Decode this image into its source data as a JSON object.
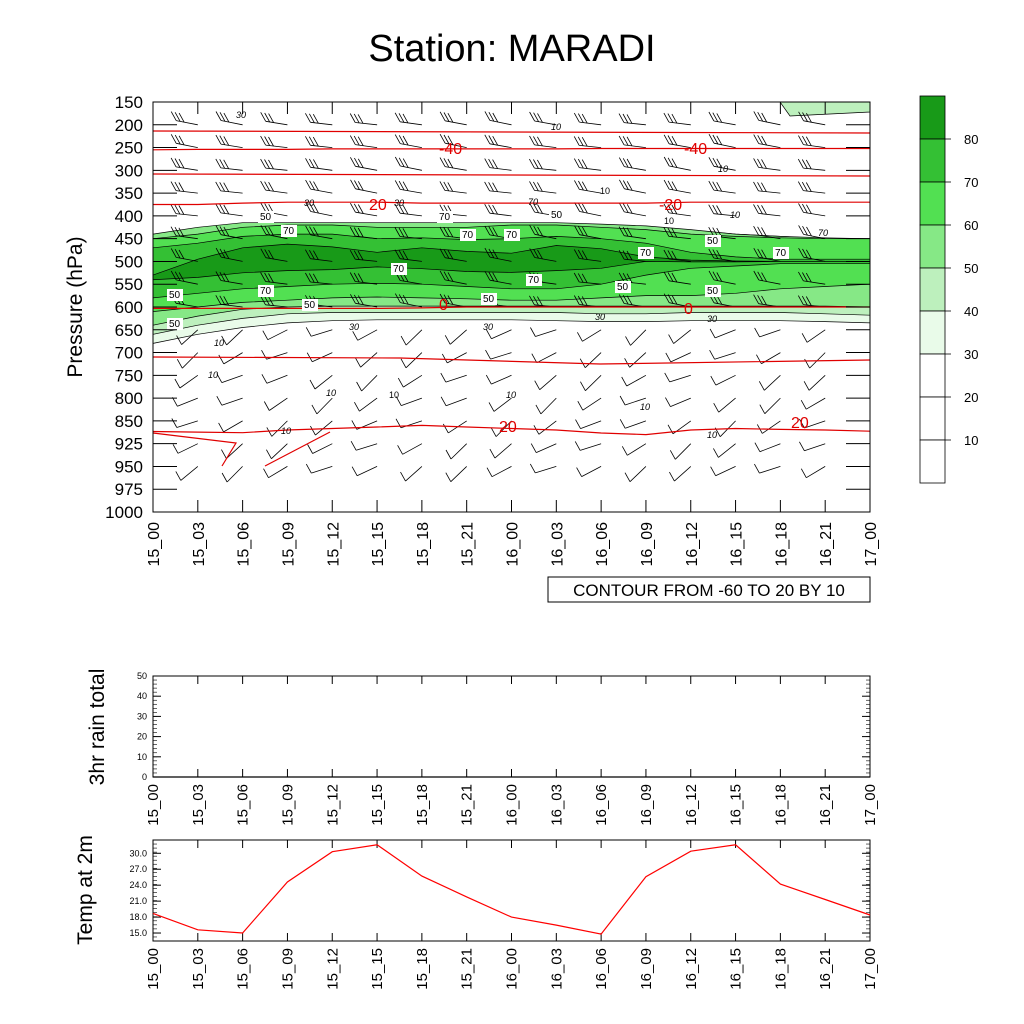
{
  "title": "Station: MARADI",
  "chart_data": [
    {
      "type": "contour",
      "name": "relative-humidity-temperature-cross-section",
      "ylabel": "Pressure (hPa)",
      "y_ticks": [
        "150",
        "200",
        "250",
        "300",
        "350",
        "400",
        "450",
        "500",
        "550",
        "600",
        "650",
        "700",
        "750",
        "800",
        "850",
        "925",
        "950",
        "975",
        "1000"
      ],
      "x_ticks": [
        "15_00",
        "15_03",
        "15_06",
        "15_09",
        "15_12",
        "15_15",
        "15_18",
        "15_21",
        "16_00",
        "16_03",
        "16_06",
        "16_09",
        "16_12",
        "16_15",
        "16_18",
        "16_21",
        "17_00"
      ],
      "info_label": "CONTOUR FROM -60 TO 20 BY 10",
      "colorbar": {
        "levels": [
          "80",
          "70",
          "60",
          "50",
          "40",
          "30",
          "20",
          "10"
        ],
        "colors": [
          "#189a18",
          "#34c034",
          "#52e052",
          "#86e886",
          "#bdf0bd",
          "#e9fbe9",
          "#ffffff",
          "#ffffff",
          "#ffffff"
        ]
      },
      "fill_series": [
        {
          "level": 30,
          "color": "#e9fbe9",
          "top": [
            460,
            440,
            430,
            430,
            430,
            430,
            430,
            430,
            430,
            430,
            430,
            435,
            440,
            445,
            450,
            455,
            460
          ],
          "bottom": [
            680,
            660,
            645,
            635,
            630,
            628,
            628,
            628,
            628,
            630,
            632,
            632,
            630,
            630,
            630,
            632,
            635
          ]
        },
        {
          "level": 40,
          "color": "#bdf0bd",
          "top": [
            450,
            430,
            420,
            420,
            420,
            420,
            420,
            420,
            420,
            420,
            420,
            425,
            432,
            440,
            445,
            450,
            452
          ],
          "bottom": [
            660,
            640,
            625,
            615,
            612,
            612,
            612,
            612,
            612,
            612,
            615,
            615,
            612,
            612,
            612,
            615,
            618
          ]
        },
        {
          "level": 50,
          "color": "#86e886",
          "top": [
            440,
            425,
            415,
            415,
            415,
            415,
            415,
            415,
            415,
            415,
            418,
            422,
            430,
            440,
            445,
            448,
            450
          ],
          "bottom": [
            640,
            620,
            605,
            600,
            598,
            598,
            598,
            598,
            598,
            598,
            598,
            598,
            598,
            598,
            598,
            598,
            600
          ]
        },
        {
          "level": 60,
          "color": "#52e052",
          "top": [
            450,
            440,
            425,
            420,
            420,
            425,
            425,
            425,
            420,
            420,
            425,
            430,
            440,
            445,
            448,
            450,
            450
          ],
          "bottom": [
            610,
            600,
            590,
            585,
            580,
            578,
            580,
            582,
            585,
            585,
            580,
            575,
            575,
            570,
            560,
            555,
            550
          ]
        },
        {
          "level": 70,
          "color": "#34c034",
          "top": [
            470,
            460,
            445,
            440,
            440,
            450,
            448,
            452,
            450,
            445,
            450,
            460,
            480,
            490,
            495,
            495,
            495
          ],
          "bottom": [
            580,
            570,
            560,
            555,
            550,
            548,
            550,
            555,
            560,
            560,
            550,
            530,
            515,
            510,
            505,
            505,
            505
          ]
        },
        {
          "level": 80,
          "color": "#189a18",
          "top": [
            530,
            495,
            470,
            462,
            468,
            480,
            470,
            478,
            482,
            465,
            472,
            490,
            497,
            499,
            500,
            500,
            500
          ],
          "bottom": [
            540,
            535,
            525,
            520,
            518,
            512,
            516,
            522,
            524,
            520,
            515,
            500,
            501,
            501,
            500,
            500,
            500
          ]
        }
      ],
      "temperature_contours": [
        {
          "label": "-40",
          "p": [
            255,
            254,
            254,
            254,
            253,
            253,
            253,
            253,
            253,
            253,
            252,
            252,
            252,
            252,
            252,
            252,
            252
          ]
        },
        {
          "label": "-20",
          "p": [
            375,
            375,
            372,
            370,
            370,
            370,
            372,
            372,
            372,
            372,
            372,
            372,
            370,
            370,
            370,
            370,
            370
          ]
        },
        {
          "label": "0",
          "p": [
            603,
            603,
            603,
            603,
            603,
            603,
            602,
            600,
            600,
            600,
            600,
            600,
            600,
            600,
            600,
            600,
            600
          ]
        },
        {
          "label": "20",
          "p": [
            885,
            887,
            889,
            880,
            875,
            870,
            865,
            870,
            875,
            880,
            890,
            895,
            880,
            875,
            878,
            880,
            884
          ]
        }
      ],
      "contour_labels": [
        "30",
        "10",
        "-40",
        "-40",
        "10",
        "10",
        "20",
        "30",
        "30",
        "10",
        "-20",
        "10",
        "50",
        "70",
        "50",
        "70",
        "70",
        "50",
        "70",
        "30",
        "50",
        "30",
        "70",
        "70",
        "70",
        "70",
        "50",
        "50",
        "50",
        "70",
        "50",
        "0",
        "50",
        "0",
        "30",
        "30",
        "30",
        "30",
        "10",
        "10",
        "10",
        "10",
        "20",
        "10",
        "20"
      ]
    },
    {
      "type": "line",
      "name": "3hr-rain-total",
      "ylabel": "3hr rain total",
      "ylim": [
        0,
        50
      ],
      "y_ticks": [
        "0",
        "10",
        "20",
        "30",
        "40",
        "50"
      ],
      "x_ticks": [
        "15_00",
        "15_03",
        "15_06",
        "15_09",
        "15_12",
        "15_15",
        "15_18",
        "15_21",
        "16_00",
        "16_03",
        "16_06",
        "16_09",
        "16_12",
        "16_15",
        "16_18",
        "16_21",
        "17_00"
      ],
      "values": [
        0,
        0,
        0,
        0,
        0,
        0,
        0,
        0,
        0,
        0,
        0,
        0,
        0,
        0,
        0,
        0,
        0
      ]
    },
    {
      "type": "line",
      "name": "temp-at-2m",
      "ylabel": "Temp at 2m",
      "ylim": [
        13.5,
        32.5
      ],
      "y_ticks": [
        "15.0",
        "18.0",
        "21.0",
        "24.0",
        "27.0",
        "30.0"
      ],
      "x_ticks": [
        "15_00",
        "15_03",
        "15_06",
        "15_09",
        "15_12",
        "15_15",
        "15_18",
        "15_21",
        "16_00",
        "16_03",
        "16_06",
        "16_09",
        "16_12",
        "16_15",
        "16_18",
        "16_21",
        "17_00"
      ],
      "values": [
        18.7,
        15.6,
        15.0,
        24.6,
        30.3,
        31.6,
        25.7,
        21.8,
        18.0,
        16.5,
        14.8,
        25.6,
        30.4,
        31.6,
        24.2,
        21.3,
        18.4
      ],
      "color": "#ff0000"
    }
  ]
}
